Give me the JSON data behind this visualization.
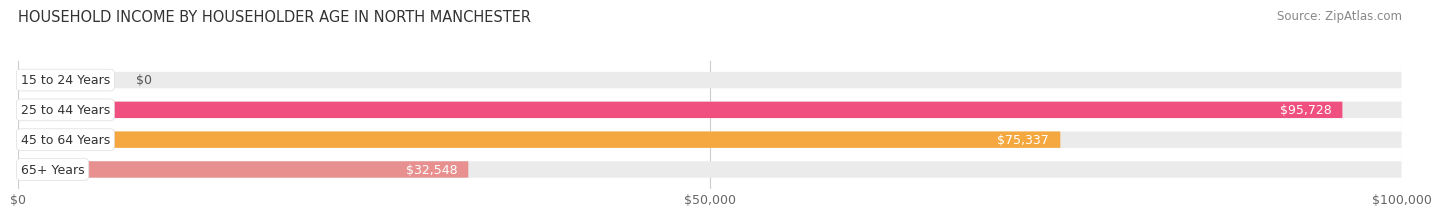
{
  "title": "HOUSEHOLD INCOME BY HOUSEHOLDER AGE IN NORTH MANCHESTER",
  "source": "Source: ZipAtlas.com",
  "categories": [
    "15 to 24 Years",
    "25 to 44 Years",
    "45 to 64 Years",
    "65+ Years"
  ],
  "values": [
    0,
    95728,
    75337,
    32548
  ],
  "bar_colors": [
    "#a0a0d0",
    "#f05080",
    "#f5a840",
    "#e89090"
  ],
  "bar_bg_color": "#ebebeb",
  "xlim": [
    0,
    100000
  ],
  "xticks": [
    0,
    50000,
    100000
  ],
  "xtick_labels": [
    "$0",
    "$50,000",
    "$100,000"
  ],
  "value_labels": [
    "$0",
    "$95,728",
    "$75,337",
    "$32,548"
  ],
  "title_fontsize": 10.5,
  "source_fontsize": 8.5,
  "tick_fontsize": 9,
  "bar_label_fontsize": 9,
  "cat_label_fontsize": 9,
  "background_color": "#ffffff",
  "bar_height": 0.55,
  "bar_gap": 1.0,
  "value_0_color": "#555555",
  "value_in_color": "#ffffff"
}
